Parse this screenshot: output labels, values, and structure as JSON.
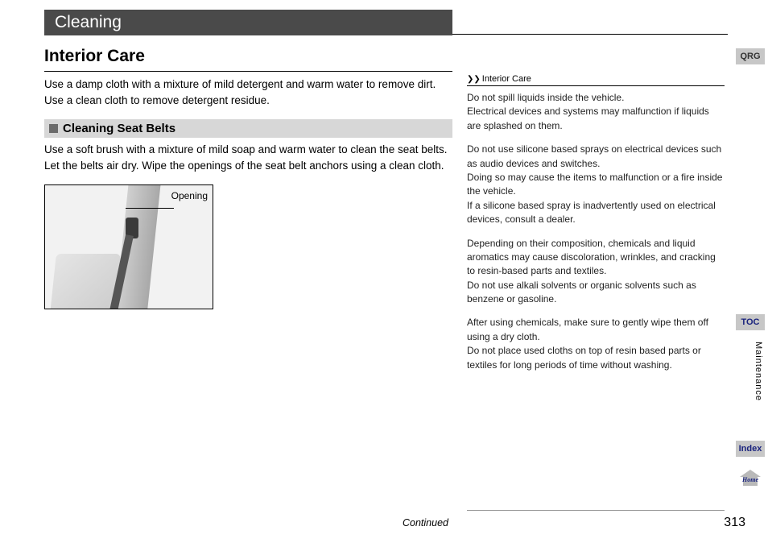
{
  "chapter_title": "Cleaning",
  "section_title": "Interior Care",
  "intro_text": "Use a damp cloth with a mixture of mild detergent and warm water to remove dirt. Use a clean cloth to remove detergent residue.",
  "sub_heading": "Cleaning Seat Belts",
  "sub_text": "Use a soft brush with a mixture of mild soap and warm water to clean the seat belts. Let the belts air dry. Wipe the openings of the seat belt anchors using a clean cloth.",
  "figure_caption": "Opening",
  "notes_header": "Interior Care",
  "notes": {
    "p1": "Do not spill liquids inside the vehicle.",
    "p2": "Electrical devices and systems may malfunction if liquids are splashed on them.",
    "p3": "Do not use silicone based sprays on electrical devices such as audio devices and switches.",
    "p4": "Doing so may cause the items to malfunction or a fire inside the vehicle.",
    "p5": "If a silicone based spray is inadvertently used on electrical devices, consult a dealer.",
    "p6": "Depending on their composition, chemicals and liquid aromatics may cause discoloration, wrinkles, and cracking to resin-based parts and textiles.",
    "p7": "Do not use alkali solvents or organic solvents such as benzene or gasoline.",
    "p8": "After using chemicals, make sure to gently wipe them off using a dry cloth.",
    "p9": "Do not place used cloths on top of resin based parts or textiles for long periods of time without washing."
  },
  "continued_label": "Continued",
  "page_number": "313",
  "tabs": {
    "qrg": "QRG",
    "toc": "TOC",
    "index": "Index",
    "home": "Home"
  },
  "vertical_label": "Maintenance"
}
